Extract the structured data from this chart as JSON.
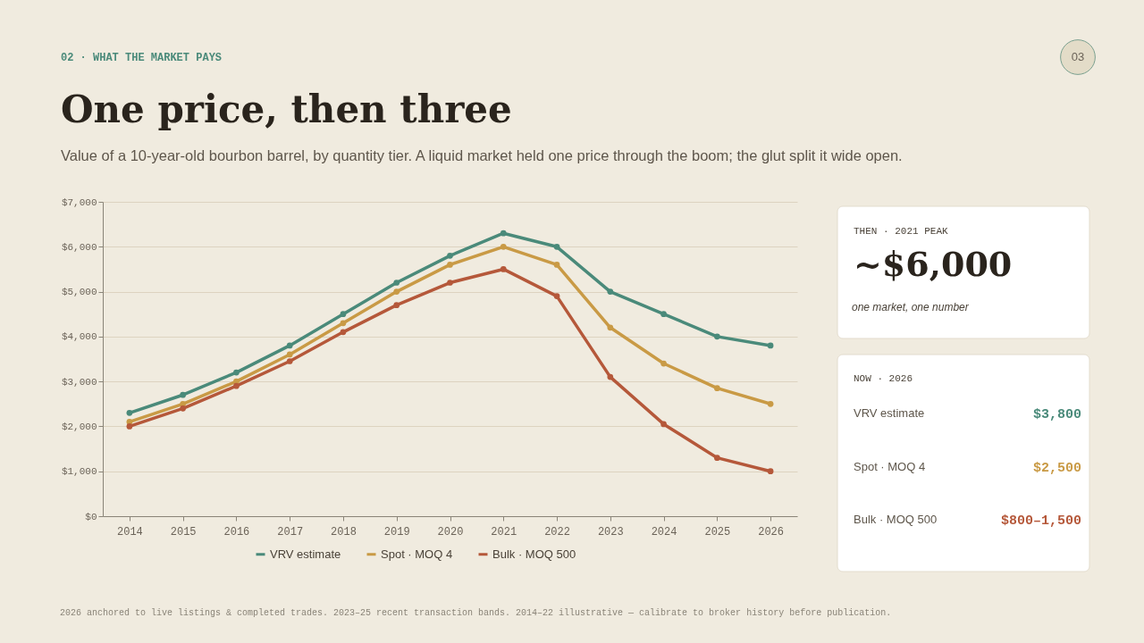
{
  "chart_data": {
    "type": "line",
    "title": "One price, then three",
    "subtitle": "Value of a 10-year-old bourbon barrel, by quantity tier. A liquid market held one price through the boom; the glut split it wide open.",
    "categories": [
      "2014",
      "2015",
      "2016",
      "2017",
      "2018",
      "2019",
      "2020",
      "2021",
      "2022",
      "2023",
      "2024",
      "2025",
      "2026"
    ],
    "series": [
      {
        "name": "VRV estimate",
        "color": "#4a8a7a",
        "values": [
          2300,
          2700,
          3200,
          3800,
          4500,
          5200,
          5800,
          6300,
          6000,
          5000,
          4500,
          4000,
          3800
        ]
      },
      {
        "name": "Spot · MOQ 4",
        "color": "#c99a45",
        "values": [
          2100,
          2500,
          3000,
          3600,
          4300,
          5000,
          5600,
          6000,
          5600,
          4200,
          3400,
          2850,
          2500
        ]
      },
      {
        "name": "Bulk · MOQ 500",
        "color": "#b5583a",
        "values": [
          2000,
          2400,
          2900,
          3450,
          4100,
          4700,
          5200,
          5500,
          4900,
          3100,
          2050,
          1300,
          1000
        ]
      }
    ],
    "ylim": [
      0,
      7000
    ],
    "yticks": [
      {
        "value": 0,
        "label": "$0"
      },
      {
        "value": 1000,
        "label": "$1,000"
      },
      {
        "value": 2000,
        "label": "$2,000"
      },
      {
        "value": 3000,
        "label": "$3,000"
      },
      {
        "value": 4000,
        "label": "$4,000"
      },
      {
        "value": 5000,
        "label": "$5,000"
      },
      {
        "value": 6000,
        "label": "$6,000"
      },
      {
        "value": 7000,
        "label": "$7,000"
      }
    ],
    "grid": "y",
    "legend": "bottom",
    "marker": "circle",
    "line_style": "solid",
    "annotations": [
      "02 · WHAT THE MARKET PAYS",
      "03",
      "THEN · 2021 PEAK",
      "~$6,000",
      "one market, one number",
      "NOW · 2026",
      "$3,800",
      "$2,500",
      "$800–1,500",
      "2026 anchored to live listings & completed trades. 2023–25 recent transaction bands. 2014–22 illustrative — calibrate to broker history before publication."
    ]
  }
}
